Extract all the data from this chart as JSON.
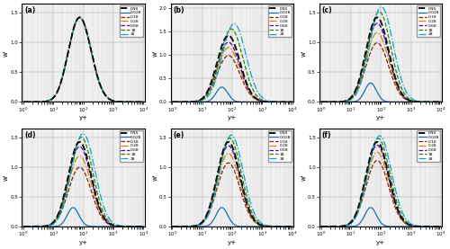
{
  "panels": [
    {
      "label": "(a)",
      "ymax": 1.65,
      "yticks": [
        0,
        0.5,
        1.0,
        1.5
      ]
    },
    {
      "label": "(b)",
      "ymax": 2.1,
      "yticks": [
        0,
        0.5,
        1.0,
        1.5,
        2.0
      ]
    },
    {
      "label": "(c)",
      "ymax": 1.65,
      "yticks": [
        0,
        0.5,
        1.0,
        1.5
      ]
    },
    {
      "label": "(d)",
      "ymax": 1.65,
      "yticks": [
        0,
        0.5,
        1.0,
        1.5
      ]
    },
    {
      "label": "(e)",
      "ymax": 1.65,
      "yticks": [
        0,
        0.5,
        1.0,
        1.5
      ]
    },
    {
      "label": "(f)",
      "ymax": 1.65,
      "yticks": [
        0,
        0.5,
        1.0,
        1.5
      ]
    }
  ],
  "legend_labels": [
    "DNS",
    "0.028",
    "0.18",
    "0.28",
    "0.68",
    "18",
    "28"
  ],
  "colors": [
    "#111111",
    "#1a6faf",
    "#8B2000",
    "#cc8800",
    "#5500aa",
    "#3a7d00",
    "#00aacc"
  ],
  "linestyles": [
    "--",
    "-",
    "--",
    "-.",
    "--",
    "--",
    "-."
  ],
  "linewidths": [
    1.4,
    0.9,
    0.9,
    0.9,
    0.9,
    0.9,
    0.9
  ],
  "xmin": 0.9,
  "xmax": 11000,
  "xlabel": "y+",
  "ylabel": "w'"
}
